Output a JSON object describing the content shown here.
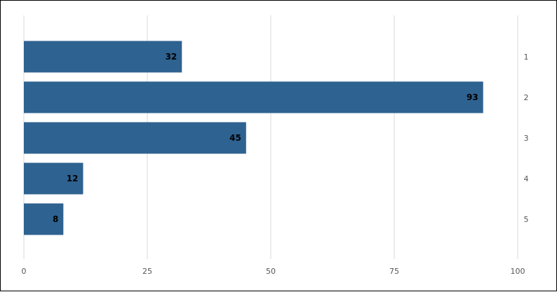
{
  "chart_data": {
    "type": "bar",
    "orientation": "horizontal",
    "categories": [
      "1",
      "2",
      "3",
      "4",
      "5"
    ],
    "values": [
      32,
      93,
      45,
      12,
      8
    ],
    "data_labels": [
      "32",
      "93",
      "45",
      "12",
      "8"
    ],
    "title": "",
    "xlabel": "",
    "ylabel": "",
    "xlim": [
      0,
      100
    ],
    "x_ticks": [
      "0",
      "25",
      "50",
      "75",
      "100"
    ],
    "category_axis_side": "right",
    "grid": true,
    "legend": "none",
    "bar_color": "#2e6290",
    "grid_color": "#d9d9d9"
  }
}
